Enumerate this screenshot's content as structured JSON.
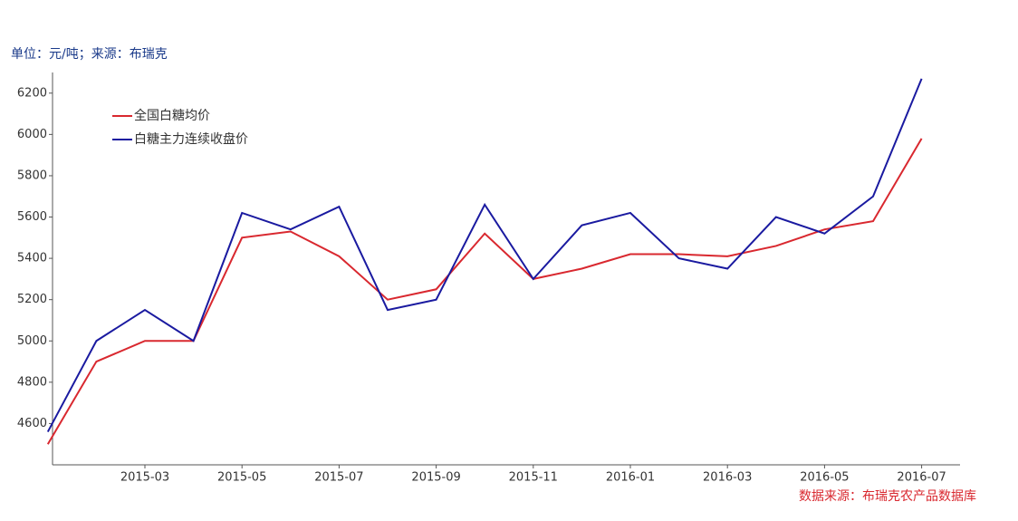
{
  "chart_data": {
    "type": "line",
    "subtitle": "单位：元/吨；来源：布瑞克",
    "source": "数据来源：布瑞克农产品数据库",
    "x": [
      "2015-01",
      "2015-02",
      "2015-03",
      "2015-04",
      "2015-05",
      "2015-06",
      "2015-07",
      "2015-08",
      "2015-09",
      "2015-10",
      "2015-11",
      "2015-12",
      "2016-01",
      "2016-02",
      "2016-03",
      "2016-04",
      "2016-05",
      "2016-06",
      "2016-07"
    ],
    "xticks": [
      "2015-03",
      "2015-05",
      "2015-07",
      "2015-09",
      "2015-11",
      "2016-01",
      "2016-03",
      "2016-05",
      "2016-07"
    ],
    "series": [
      {
        "name": "全国白糖均价",
        "color": "#d9282f",
        "values": [
          4500,
          4900,
          5000,
          5000,
          5500,
          5530,
          5410,
          5200,
          5250,
          5520,
          5300,
          5350,
          5420,
          5420,
          5410,
          5460,
          5540,
          5580,
          5980
        ]
      },
      {
        "name": "白糖主力连续收盘价",
        "color": "#1a1aa0",
        "values": [
          4560,
          5000,
          5150,
          5000,
          5620,
          5540,
          5650,
          5150,
          5200,
          5660,
          5300,
          5560,
          5620,
          5400,
          5350,
          5600,
          5520,
          5700,
          6270
        ]
      }
    ],
    "ylim": [
      4400,
      6300
    ],
    "yticks": [
      4600,
      4800,
      5000,
      5200,
      5400,
      5600,
      5800,
      6000,
      6200
    ],
    "legend": "upper-left"
  }
}
